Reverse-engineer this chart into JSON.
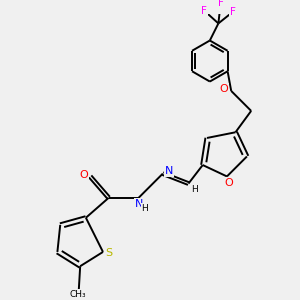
{
  "bg_color": "#f0f0f0",
  "atom_color_O": "#ff0000",
  "atom_color_N": "#0000ff",
  "atom_color_S": "#b8b800",
  "atom_color_F": "#ff00ff",
  "bond_color": "#000000",
  "line_width": 1.4,
  "figsize": [
    3.0,
    3.0
  ],
  "dpi": 100,
  "xlim": [
    0,
    10
  ],
  "ylim": [
    0,
    10
  ]
}
